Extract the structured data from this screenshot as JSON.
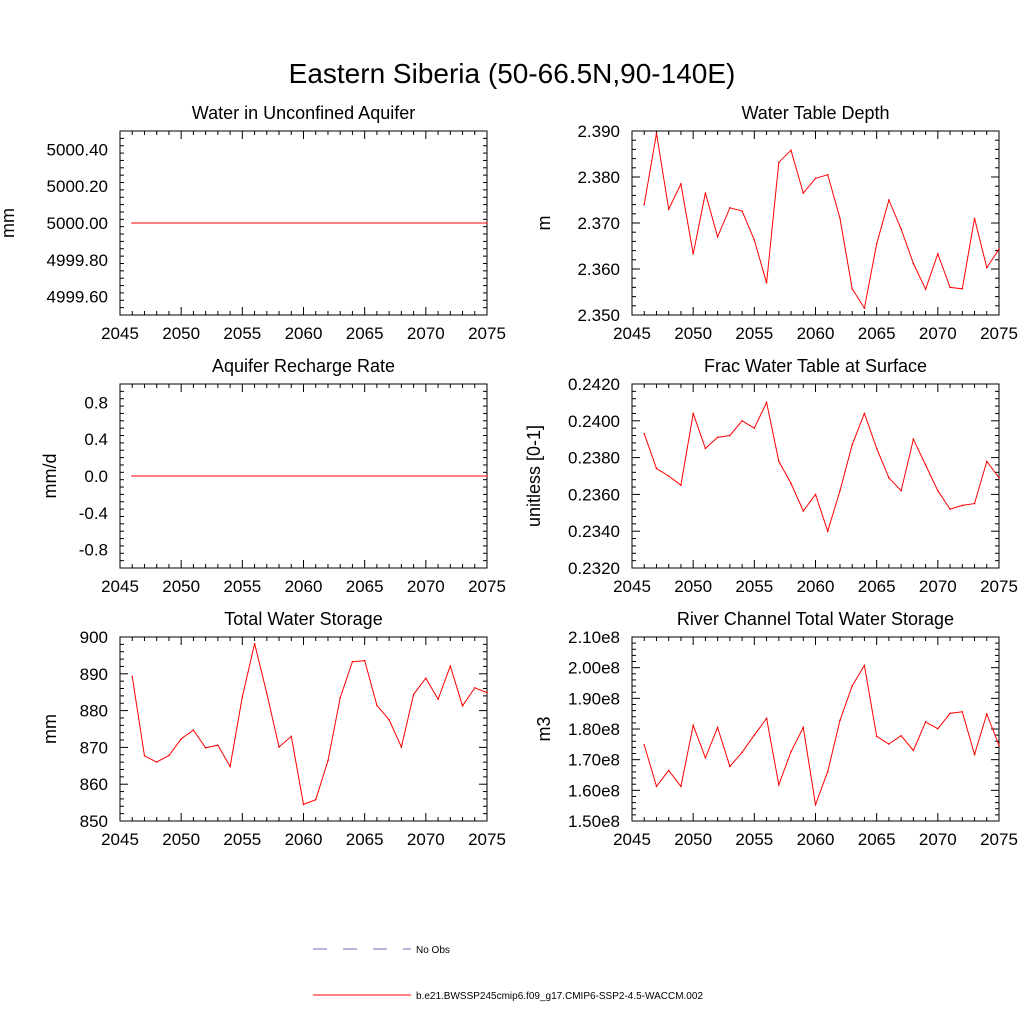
{
  "main_title": "Eastern Siberia (50-66.5N,90-140E)",
  "legend": {
    "entries": [
      {
        "label": "No Obs",
        "color": "#6b6bb8",
        "dash": true
      },
      {
        "label": "b.e21.BWSSP245cmip6.f09_g17.CMIP6-SSP2-4.5-WACCM.002",
        "color": "#ff0000",
        "dash": false
      }
    ]
  },
  "chart_data": [
    {
      "type": "line",
      "title": "Water in Unconfined Aquifer",
      "ylabel": "mm",
      "xlim": [
        2045,
        2075
      ],
      "ylim": [
        4999.5,
        5000.5
      ],
      "xticks": [
        "2045",
        "2050",
        "2055",
        "2060",
        "2065",
        "2070",
        "2075"
      ],
      "yticks": [
        {
          "v": 4999.6,
          "label": "4999.60"
        },
        {
          "v": 4999.8,
          "label": "4999.80"
        },
        {
          "v": 5000.0,
          "label": "5000.00"
        },
        {
          "v": 5000.2,
          "label": "5000.20"
        },
        {
          "v": 5000.4,
          "label": "5000.40"
        }
      ],
      "color": "#ff0000",
      "x": [
        2046,
        2075
      ],
      "values": [
        5000.0,
        5000.0
      ]
    },
    {
      "type": "line",
      "title": "Water Table Depth",
      "ylabel": "m",
      "xlim": [
        2045,
        2075
      ],
      "ylim": [
        2.35,
        2.39
      ],
      "xticks": [
        "2045",
        "2050",
        "2055",
        "2060",
        "2065",
        "2070",
        "2075"
      ],
      "yticks": [
        {
          "v": 2.35,
          "label": "2.350"
        },
        {
          "v": 2.36,
          "label": "2.360"
        },
        {
          "v": 2.37,
          "label": "2.370"
        },
        {
          "v": 2.38,
          "label": "2.380"
        },
        {
          "v": 2.39,
          "label": "2.390"
        }
      ],
      "color": "#ff0000",
      "x": [
        2046,
        2047,
        2048,
        2049,
        2050,
        2051,
        2052,
        2053,
        2054,
        2055,
        2056,
        2057,
        2058,
        2059,
        2060,
        2061,
        2062,
        2063,
        2064,
        2065,
        2066,
        2067,
        2068,
        2069,
        2070,
        2071,
        2072,
        2073,
        2074,
        2075
      ],
      "values": [
        2.374,
        2.3895,
        2.373,
        2.3785,
        2.3633,
        2.3765,
        2.367,
        2.3733,
        2.3726,
        2.3663,
        2.357,
        2.3832,
        2.3858,
        2.3765,
        2.3797,
        2.3805,
        2.371,
        2.3557,
        2.3515,
        2.3655,
        2.375,
        2.3687,
        2.3612,
        2.3556,
        2.3633,
        2.356,
        2.3557,
        2.371,
        2.3603,
        2.3643
      ]
    },
    {
      "type": "line",
      "title": "Aquifer Recharge Rate",
      "ylabel": "mm/d",
      "xlim": [
        2045,
        2075
      ],
      "ylim": [
        -1.0,
        1.0
      ],
      "xticks": [
        "2045",
        "2050",
        "2055",
        "2060",
        "2065",
        "2070",
        "2075"
      ],
      "yticks": [
        {
          "v": -0.8,
          "label": "-0.8"
        },
        {
          "v": -0.4,
          "label": "-0.4"
        },
        {
          "v": 0.0,
          "label": "0.0"
        },
        {
          "v": 0.4,
          "label": "0.4"
        },
        {
          "v": 0.8,
          "label": "0.8"
        }
      ],
      "color": "#ff0000",
      "x": [
        2046,
        2075
      ],
      "values": [
        0.0,
        0.0
      ]
    },
    {
      "type": "line",
      "title": "Frac Water Table at Surface",
      "ylabel": "unitless [0-1]",
      "xlim": [
        2045,
        2075
      ],
      "ylim": [
        0.232,
        0.242
      ],
      "xticks": [
        "2045",
        "2050",
        "2055",
        "2060",
        "2065",
        "2070",
        "2075"
      ],
      "yticks": [
        {
          "v": 0.232,
          "label": "0.2320"
        },
        {
          "v": 0.234,
          "label": "0.2340"
        },
        {
          "v": 0.236,
          "label": "0.2360"
        },
        {
          "v": 0.238,
          "label": "0.2380"
        },
        {
          "v": 0.24,
          "label": "0.2400"
        },
        {
          "v": 0.242,
          "label": "0.2420"
        }
      ],
      "color": "#ff0000",
      "x": [
        2046,
        2047,
        2048,
        2049,
        2050,
        2051,
        2052,
        2053,
        2054,
        2055,
        2056,
        2057,
        2058,
        2059,
        2060,
        2061,
        2062,
        2063,
        2064,
        2065,
        2066,
        2067,
        2068,
        2069,
        2070,
        2071,
        2072,
        2073,
        2074,
        2075
      ],
      "values": [
        0.2393,
        0.2374,
        0.237,
        0.2365,
        0.2404,
        0.2385,
        0.2391,
        0.2392,
        0.24,
        0.2396,
        0.241,
        0.2378,
        0.2366,
        0.2351,
        0.236,
        0.234,
        0.2362,
        0.2387,
        0.2404,
        0.2385,
        0.2369,
        0.2362,
        0.239,
        0.2376,
        0.2362,
        0.2352,
        0.2354,
        0.2355,
        0.2378,
        0.2369
      ]
    },
    {
      "type": "line",
      "title": "Total Water Storage",
      "ylabel": "mm",
      "xlim": [
        2045,
        2075
      ],
      "ylim": [
        850,
        900
      ],
      "xticks": [
        "2045",
        "2050",
        "2055",
        "2060",
        "2065",
        "2070",
        "2075"
      ],
      "yticks": [
        {
          "v": 850,
          "label": "850"
        },
        {
          "v": 860,
          "label": "860"
        },
        {
          "v": 870,
          "label": "870"
        },
        {
          "v": 880,
          "label": "880"
        },
        {
          "v": 890,
          "label": "890"
        },
        {
          "v": 900,
          "label": "900"
        }
      ],
      "color": "#ff0000",
      "x": [
        2046,
        2047,
        2048,
        2049,
        2050,
        2051,
        2052,
        2053,
        2054,
        2055,
        2056,
        2057,
        2058,
        2059,
        2060,
        2061,
        2062,
        2063,
        2064,
        2065,
        2066,
        2067,
        2068,
        2069,
        2070,
        2071,
        2072,
        2073,
        2074,
        2075
      ],
      "values": [
        889.3,
        867.7,
        866.0,
        867.8,
        872.3,
        874.7,
        869.9,
        870.6,
        864.8,
        883.7,
        898.2,
        884.7,
        870.1,
        873.0,
        854.5,
        855.8,
        866.4,
        883.5,
        893.3,
        893.6,
        881.4,
        877.5,
        870.1,
        884.4,
        888.8,
        883.1,
        892.1,
        881.3,
        886.2,
        884.9
      ]
    },
    {
      "type": "line",
      "title": "River Channel Total Water Storage",
      "ylabel": "m3",
      "xlim": [
        2045,
        2075
      ],
      "ylim": [
        150000000.0,
        210000000.0
      ],
      "xticks": [
        "2045",
        "2050",
        "2055",
        "2060",
        "2065",
        "2070",
        "2075"
      ],
      "yticks": [
        {
          "v": 150000000.0,
          "label": "1.50e8"
        },
        {
          "v": 160000000.0,
          "label": "1.60e8"
        },
        {
          "v": 170000000.0,
          "label": "1.70e8"
        },
        {
          "v": 180000000.0,
          "label": "1.80e8"
        },
        {
          "v": 190000000.0,
          "label": "1.90e8"
        },
        {
          "v": 200000000.0,
          "label": "2.00e8"
        },
        {
          "v": 210000000.0,
          "label": "2.10e8"
        }
      ],
      "color": "#ff0000",
      "x": [
        2046,
        2047,
        2048,
        2049,
        2050,
        2051,
        2052,
        2053,
        2054,
        2055,
        2056,
        2057,
        2058,
        2059,
        2060,
        2061,
        2062,
        2063,
        2064,
        2065,
        2066,
        2067,
        2068,
        2069,
        2070,
        2071,
        2072,
        2073,
        2074,
        2075
      ],
      "values": [
        174800000.0,
        161300000.0,
        166500000.0,
        161300000.0,
        181200000.0,
        170600000.0,
        180500000.0,
        167800000.0,
        172400000.0,
        178000000.0,
        183500000.0,
        161800000.0,
        172600000.0,
        180500000.0,
        155300000.0,
        166100000.0,
        182800000.0,
        194100000.0,
        200700000.0,
        177600000.0,
        175100000.0,
        177800000.0,
        173000000.0,
        182300000.0,
        180100000.0,
        185100000.0,
        185600000.0,
        171700000.0,
        184900000.0,
        174700000.0
      ]
    }
  ]
}
